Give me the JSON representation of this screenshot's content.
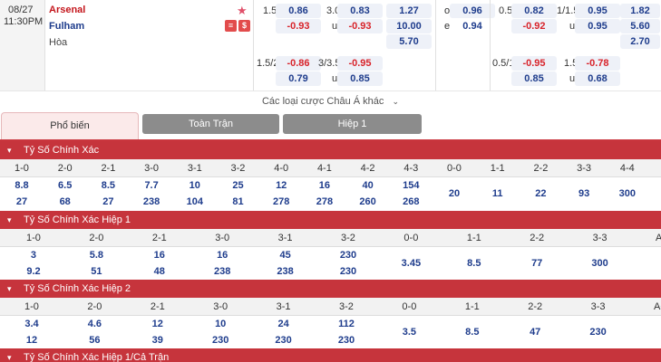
{
  "match": {
    "date": "08/27",
    "time": "11:30PM",
    "home": "Arsenal",
    "away": "Fulham",
    "draw": "Hòa"
  },
  "odds": {
    "hc1_line": "1.5",
    "hc1_home": "0.86",
    "hc1_away": "-0.93",
    "ou1_line": "3.0",
    "ou1_over": "0.83",
    "ou1_u": "u",
    "ou1_under": "-0.93",
    "x1_home": "1.27",
    "x1_away": "10.00",
    "x1_draw": "5.70",
    "oe_o": "o",
    "oe_o_val": "0.96",
    "oe_e": "e",
    "oe_e_val": "0.94",
    "hc2_line": "0.5",
    "hc2_home": "0.82",
    "hc2_away": "-0.92",
    "ou2_line": "1/1.5",
    "ou2_over": "0.95",
    "ou2_u": "u",
    "ou2_under": "0.95",
    "x2_home": "1.82",
    "x2_away": "5.60",
    "x2_draw": "2.70",
    "hc3_line": "1.5/2",
    "hc3_home": "-0.86",
    "hc3_away": "0.79",
    "ou3_line": "3/3.5",
    "ou3_over": "-0.95",
    "ou3_u": "u",
    "ou3_under": "0.85",
    "hc4_line": "0.5/1",
    "hc4_home": "-0.95",
    "hc4_away": "0.85",
    "ou4_line": "1.5",
    "ou4_over": "-0.78",
    "ou4_u": "u",
    "ou4_under": "0.68"
  },
  "more_bets": "Các loại cược Châu Á khác",
  "tabs": {
    "t1": "Phổ biến",
    "t2": "Toàn Trận",
    "t3": "Hiệp 1"
  },
  "s1": {
    "title": "Tỷ Số Chính Xác",
    "headers": [
      "1-0",
      "2-0",
      "2-1",
      "3-0",
      "3-1",
      "3-2",
      "4-0",
      "4-1",
      "4-2",
      "4-3",
      "0-0",
      "1-1",
      "2-2",
      "3-3",
      "4-4"
    ],
    "top": [
      "8.8",
      "6.5",
      "8.5",
      "7.7",
      "10",
      "25",
      "12",
      "16",
      "40",
      "154"
    ],
    "bottom": [
      "27",
      "68",
      "27",
      "238",
      "104",
      "81",
      "278",
      "278",
      "260",
      "268"
    ],
    "draws": [
      "20",
      "11",
      "22",
      "93",
      "300"
    ]
  },
  "s2": {
    "title": "Tỷ Số Chính Xác Hiệp 1",
    "headers": [
      "1-0",
      "2-0",
      "2-1",
      "3-0",
      "3-1",
      "3-2",
      "0-0",
      "1-1",
      "2-2",
      "3-3",
      "AO"
    ],
    "top": [
      "3",
      "5.8",
      "16",
      "16",
      "45",
      "230"
    ],
    "bottom": [
      "9.2",
      "51",
      "48",
      "238",
      "238",
      "230"
    ],
    "draws": [
      "3.45",
      "8.5",
      "77",
      "300"
    ]
  },
  "s3": {
    "title": "Tỷ Số Chính Xác Hiệp 2",
    "headers": [
      "1-0",
      "2-0",
      "2-1",
      "3-0",
      "3-1",
      "3-2",
      "0-0",
      "1-1",
      "2-2",
      "3-3",
      "AO"
    ],
    "top": [
      "3.4",
      "4.6",
      "12",
      "10",
      "24",
      "112"
    ],
    "bottom": [
      "12",
      "56",
      "39",
      "230",
      "230",
      "230"
    ],
    "draws": [
      "3.5",
      "8.5",
      "47",
      "230"
    ]
  },
  "s4": {
    "title": "Tỷ Số Chính Xác Hiệp 1/Cả Trận"
  }
}
